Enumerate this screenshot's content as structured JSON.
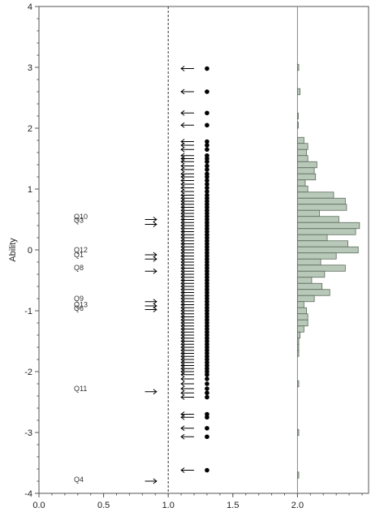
{
  "chart_data": {
    "type": "item-person-map",
    "ylabel": "Ability",
    "xlabel": "",
    "ylim": [
      -4,
      4
    ],
    "xlim": [
      0.0,
      2.55
    ],
    "y_ticks": [
      "-4",
      "-3",
      "-2",
      "-1",
      "0",
      "1",
      "2",
      "3",
      "4"
    ],
    "x_ticks": [
      "0.0",
      "0.5",
      "1.0",
      "1.5",
      "2.0"
    ],
    "reference_line_x": 1.0,
    "histogram_baseline_x": 2.0,
    "items": [
      {
        "label": "Q10",
        "difficulty": 0.55
      },
      {
        "label": "Q3",
        "difficulty": 0.49
      },
      {
        "label": "Q12",
        "difficulty": 0.0
      },
      {
        "label": "Q1",
        "difficulty": -0.08
      },
      {
        "label": "Q8",
        "difficulty": -0.29
      },
      {
        "label": "Q9",
        "difficulty": -0.8
      },
      {
        "label": "Q13",
        "difficulty": -0.9
      },
      {
        "label": "Q6",
        "difficulty": -0.96
      },
      {
        "label": "Q11",
        "difficulty": -2.28
      },
      {
        "label": "Q4",
        "difficulty": -3.77
      }
    ],
    "item_arrows": [
      0.5,
      0.42,
      -0.08,
      -0.15,
      -0.35,
      -0.85,
      -0.92,
      -0.98,
      -2.33,
      -3.8
    ],
    "person_abilities": [
      2.98,
      2.6,
      2.25,
      2.05,
      1.78,
      1.72,
      1.65,
      1.55,
      1.5,
      1.45,
      1.38,
      1.32,
      1.25,
      1.2,
      1.14,
      1.08,
      1.02,
      0.96,
      0.9,
      0.85,
      0.8,
      0.75,
      0.7,
      0.65,
      0.6,
      0.55,
      0.5,
      0.45,
      0.4,
      0.35,
      0.3,
      0.25,
      0.2,
      0.15,
      0.1,
      0.05,
      0.0,
      -0.05,
      -0.1,
      -0.15,
      -0.2,
      -0.25,
      -0.3,
      -0.35,
      -0.4,
      -0.45,
      -0.5,
      -0.55,
      -0.6,
      -0.65,
      -0.7,
      -0.75,
      -0.8,
      -0.85,
      -0.9,
      -0.95,
      -1.0,
      -1.05,
      -1.1,
      -1.15,
      -1.2,
      -1.25,
      -1.3,
      -1.35,
      -1.4,
      -1.45,
      -1.5,
      -1.55,
      -1.6,
      -1.65,
      -1.7,
      -1.75,
      -1.8,
      -1.85,
      -1.9,
      -1.95,
      -2.0,
      -2.05,
      -2.12,
      -2.2,
      -2.28,
      -2.35,
      -2.42,
      -2.7,
      -2.75,
      -2.93,
      -3.07,
      -3.62
    ],
    "histogram": {
      "bin_width": 0.1,
      "bins": [
        {
          "center": 3.0,
          "value": 0.01
        },
        {
          "center": 2.6,
          "value": 0.02
        },
        {
          "center": 2.2,
          "value": 0.005
        },
        {
          "center": 2.05,
          "value": 0.005
        },
        {
          "center": 1.8,
          "value": 0.05
        },
        {
          "center": 1.7,
          "value": 0.08
        },
        {
          "center": 1.6,
          "value": 0.07
        },
        {
          "center": 1.5,
          "value": 0.08
        },
        {
          "center": 1.4,
          "value": 0.15
        },
        {
          "center": 1.3,
          "value": 0.13
        },
        {
          "center": 1.2,
          "value": 0.14
        },
        {
          "center": 1.1,
          "value": 0.06
        },
        {
          "center": 1.0,
          "value": 0.08
        },
        {
          "center": 0.9,
          "value": 0.28
        },
        {
          "center": 0.8,
          "value": 0.37
        },
        {
          "center": 0.7,
          "value": 0.38
        },
        {
          "center": 0.6,
          "value": 0.17
        },
        {
          "center": 0.5,
          "value": 0.32
        },
        {
          "center": 0.4,
          "value": 0.48
        },
        {
          "center": 0.3,
          "value": 0.45
        },
        {
          "center": 0.2,
          "value": 0.23
        },
        {
          "center": 0.1,
          "value": 0.39
        },
        {
          "center": 0.0,
          "value": 0.47
        },
        {
          "center": -0.1,
          "value": 0.3
        },
        {
          "center": -0.2,
          "value": 0.18
        },
        {
          "center": -0.3,
          "value": 0.37
        },
        {
          "center": -0.4,
          "value": 0.21
        },
        {
          "center": -0.5,
          "value": 0.11
        },
        {
          "center": -0.6,
          "value": 0.19
        },
        {
          "center": -0.7,
          "value": 0.25
        },
        {
          "center": -0.8,
          "value": 0.13
        },
        {
          "center": -0.9,
          "value": 0.05
        },
        {
          "center": -1.0,
          "value": 0.07
        },
        {
          "center": -1.1,
          "value": 0.08
        },
        {
          "center": -1.2,
          "value": 0.08
        },
        {
          "center": -1.3,
          "value": 0.05
        },
        {
          "center": -1.4,
          "value": 0.02
        },
        {
          "center": -1.5,
          "value": 0.01
        },
        {
          "center": -1.6,
          "value": 0.01
        },
        {
          "center": -1.7,
          "value": 0.01
        },
        {
          "center": -2.2,
          "value": 0.01
        },
        {
          "center": -3.0,
          "value": 0.01
        },
        {
          "center": -3.7,
          "value": 0.01
        }
      ]
    },
    "colors": {
      "histogram_fill": "#b9c9b9",
      "histogram_stroke": "#5a6a5a",
      "axis": "#555555",
      "points": "#000000"
    }
  }
}
